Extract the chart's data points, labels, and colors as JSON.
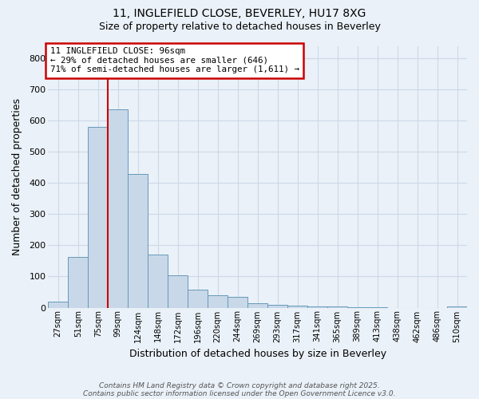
{
  "title_line1": "11, INGLEFIELD CLOSE, BEVERLEY, HU17 8XG",
  "title_line2": "Size of property relative to detached houses in Beverley",
  "xlabel": "Distribution of detached houses by size in Beverley",
  "ylabel": "Number of detached properties",
  "categories": [
    "27sqm",
    "51sqm",
    "75sqm",
    "99sqm",
    "124sqm",
    "148sqm",
    "172sqm",
    "196sqm",
    "220sqm",
    "244sqm",
    "269sqm",
    "293sqm",
    "317sqm",
    "341sqm",
    "365sqm",
    "389sqm",
    "413sqm",
    "438sqm",
    "462sqm",
    "486sqm",
    "510sqm"
  ],
  "values": [
    18,
    162,
    580,
    637,
    428,
    170,
    105,
    57,
    40,
    34,
    13,
    9,
    7,
    5,
    4,
    1,
    1,
    0,
    0,
    0,
    5
  ],
  "bar_color": "#c8d8e8",
  "bar_edge_color": "#6699bb",
  "grid_color": "#ccd9e8",
  "property_size_label": "11 INGLEFIELD CLOSE: 96sqm",
  "pct_smaller": 29,
  "n_smaller": 646,
  "pct_larger_semi": 71,
  "n_larger_semi": 1611,
  "annotation_box_color": "#ffffff",
  "annotation_box_edge": "#cc0000",
  "vline_color": "#cc0000",
  "vline_x_bin_index": 2.5,
  "ylim": [
    0,
    840
  ],
  "yticks": [
    0,
    100,
    200,
    300,
    400,
    500,
    600,
    700,
    800
  ],
  "footnote_line1": "Contains HM Land Registry data © Crown copyright and database right 2025.",
  "footnote_line2": "Contains public sector information licensed under the Open Government Licence v3.0.",
  "bg_color": "#eaf1f8"
}
